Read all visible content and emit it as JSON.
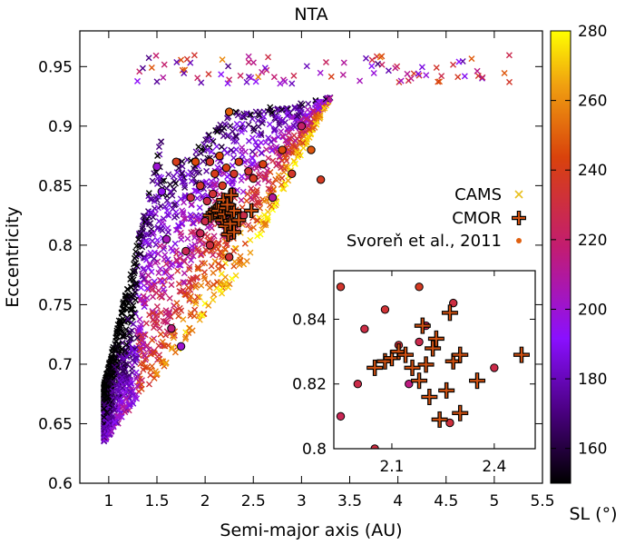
{
  "chart_data": {
    "type": "scatter",
    "title": "NTA",
    "xlabel": "Semi-major axis (AU)",
    "ylabel": "Eccentricity",
    "xlim": [
      0.7,
      5.5
    ],
    "ylim": [
      0.6,
      0.98
    ],
    "xticks": [
      1,
      1.5,
      2,
      2.5,
      3,
      3.5,
      4,
      4.5,
      5,
      5.5
    ],
    "xtick_labels": [
      "1",
      "1.5",
      "2",
      "2.5",
      "3",
      "3.5",
      "4",
      "4.5",
      "5",
      "5.5"
    ],
    "yticks": [
      0.6,
      0.65,
      0.7,
      0.75,
      0.8,
      0.85,
      0.9,
      0.95
    ],
    "ytick_labels": [
      "0.6",
      "0.65",
      "0.7",
      "0.75",
      "0.8",
      "0.85",
      "0.9",
      "0.95"
    ],
    "colorbar": {
      "label": "SL (°)",
      "range": [
        150,
        280
      ],
      "ticks": [
        160,
        180,
        200,
        220,
        240,
        260,
        280
      ],
      "tick_labels": [
        "160",
        "180",
        "200",
        "220",
        "240",
        "260",
        "280"
      ],
      "stops": [
        "#000000",
        "#4b0082",
        "#8a10ff",
        "#c21c72",
        "#d9420c",
        "#f0a010",
        "#ffff00"
      ]
    },
    "legend_position": "right",
    "series": [
      {
        "name": "CAMS",
        "marker": "x",
        "legend_color": "#e8c020",
        "description": "dense band of meteor orbits, a≈1.0–5.3 AU, e≈0.63–0.97",
        "band": {
          "a_min": 0.95,
          "a_max": 5.3,
          "e_min": 0.63,
          "e_max": 0.97
        }
      },
      {
        "name": "CMOR",
        "marker": "plus",
        "legend_color": "#000000",
        "points": [
          [
            2.05,
            0.825
          ],
          [
            2.08,
            0.827
          ],
          [
            2.1,
            0.828
          ],
          [
            2.12,
            0.83
          ],
          [
            2.14,
            0.829
          ],
          [
            2.16,
            0.825
          ],
          [
            2.18,
            0.821
          ],
          [
            2.19,
            0.838
          ],
          [
            2.2,
            0.826
          ],
          [
            2.21,
            0.816
          ],
          [
            2.22,
            0.831
          ],
          [
            2.24,
            0.809
          ],
          [
            2.26,
            0.818
          ],
          [
            2.27,
            0.842
          ],
          [
            2.28,
            0.827
          ],
          [
            2.3,
            0.811
          ],
          [
            2.35,
            0.821
          ],
          [
            2.48,
            0.829
          ],
          [
            2.3,
            0.829
          ],
          [
            2.23,
            0.834
          ]
        ]
      },
      {
        "name": "Svoreň et al., 2011",
        "marker": "circle",
        "legend_color": "#e06010",
        "points": [
          [
            1.5,
            0.866,
            200
          ],
          [
            1.55,
            0.845,
            195
          ],
          [
            1.6,
            0.805,
            205
          ],
          [
            1.65,
            0.73,
            215
          ],
          [
            1.7,
            0.87,
            240
          ],
          [
            1.75,
            0.715,
            200
          ],
          [
            1.8,
            0.795,
            225
          ],
          [
            1.85,
            0.84,
            230
          ],
          [
            1.9,
            0.87,
            245
          ],
          [
            1.95,
            0.85,
            235
          ],
          [
            2.0,
            0.82,
            228
          ],
          [
            2.05,
            0.87,
            236
          ],
          [
            2.1,
            0.86,
            240
          ],
          [
            2.12,
            0.832,
            232
          ],
          [
            2.15,
            0.875,
            244
          ],
          [
            2.18,
            0.85,
            238
          ],
          [
            2.2,
            0.838,
            224
          ],
          [
            2.22,
            0.865,
            242
          ],
          [
            2.25,
            0.912,
            250
          ],
          [
            2.28,
            0.845,
            230
          ],
          [
            2.3,
            0.86,
            236
          ],
          [
            2.35,
            0.87,
            240
          ],
          [
            2.4,
            0.825,
            228
          ],
          [
            2.45,
            0.862,
            234
          ],
          [
            2.5,
            0.856,
            238
          ],
          [
            2.6,
            0.868,
            242
          ],
          [
            2.7,
            0.84,
            210
          ],
          [
            2.8,
            0.88,
            246
          ],
          [
            2.9,
            0.86,
            236
          ],
          [
            3.0,
            0.9,
            220
          ],
          [
            3.1,
            0.88,
            248
          ],
          [
            3.2,
            0.855,
            238
          ],
          [
            1.95,
            0.81,
            225
          ],
          [
            2.05,
            0.8,
            230
          ],
          [
            2.15,
            0.82,
            215
          ],
          [
            2.25,
            0.79,
            232
          ],
          [
            2.02,
            0.837,
            229
          ],
          [
            2.08,
            0.843,
            233
          ],
          [
            2.18,
            0.833,
            227
          ],
          [
            2.27,
            0.808,
            231
          ]
        ]
      }
    ],
    "inset": {
      "xlim": [
        1.93,
        2.52
      ],
      "ylim": [
        0.8,
        0.855
      ],
      "xticks": [
        2.1,
        2.4
      ],
      "xtick_labels": [
        "2.1",
        "2.4"
      ],
      "yticks": [
        0.8,
        0.82,
        0.84
      ],
      "ytick_labels": [
        "0.8",
        "0.82",
        "0.84"
      ]
    }
  }
}
